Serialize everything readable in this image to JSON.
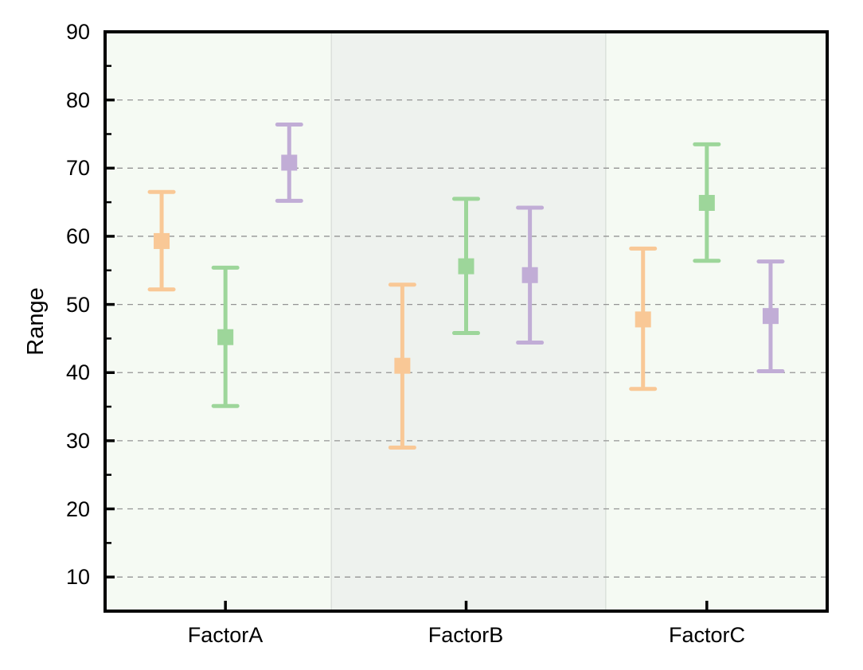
{
  "chart_data": {
    "type": "errorbar",
    "ylabel": "Range",
    "xlabel": "",
    "categories": [
      "FactorA",
      "FactorB",
      "FactorC"
    ],
    "x_positions": [
      1,
      2,
      3
    ],
    "xlim": [
      0.5,
      3.5
    ],
    "ylim": [
      5,
      90
    ],
    "y_tick_labels": [
      "10",
      "20",
      "30",
      "40",
      "50",
      "60",
      "70",
      "80",
      "90"
    ],
    "y_major_ticks": [
      10,
      20,
      30,
      40,
      50,
      60,
      70,
      80,
      90
    ],
    "y_minor_ticks": [
      15,
      25,
      35,
      45,
      55,
      65,
      75,
      85
    ],
    "gridlines": {
      "values": [
        10,
        20,
        30,
        40,
        50,
        60,
        70,
        80
      ],
      "style": "dashed",
      "on": true
    },
    "legend": {
      "visible": false
    },
    "bands": [
      {
        "from": 0.5,
        "to": 1.44,
        "color": "#F5FAF3"
      },
      {
        "from": 1.44,
        "to": 2.58,
        "color": "#EEF2EE"
      },
      {
        "from": 2.58,
        "to": 3.5,
        "color": "#F5FAF3"
      }
    ],
    "style": {
      "grid_color": "#949494",
      "axis_color": "#000000",
      "band_divider_color": "#D8DDD8",
      "background_color": "#FFFFFF"
    },
    "series": [
      {
        "key": "orange",
        "color": "#F9C896",
        "x_offset": -0.265,
        "means": [
          59.3,
          41.0,
          47.8
        ],
        "lowers": [
          52.2,
          29.0,
          37.6
        ],
        "uppers": [
          66.5,
          52.9,
          58.2
        ]
      },
      {
        "key": "green",
        "color": "#9DD69A",
        "x_offset": 0,
        "means": [
          45.2,
          55.6,
          64.9
        ],
        "lowers": [
          35.1,
          45.8,
          56.4
        ],
        "uppers": [
          55.4,
          65.5,
          73.5
        ]
      },
      {
        "key": "purple",
        "color": "#C1ADD6",
        "x_offset": 0.265,
        "means": [
          70.8,
          54.3,
          48.3
        ],
        "lowers": [
          65.2,
          44.4,
          40.2
        ],
        "uppers": [
          76.4,
          64.2,
          56.3
        ]
      }
    ]
  }
}
